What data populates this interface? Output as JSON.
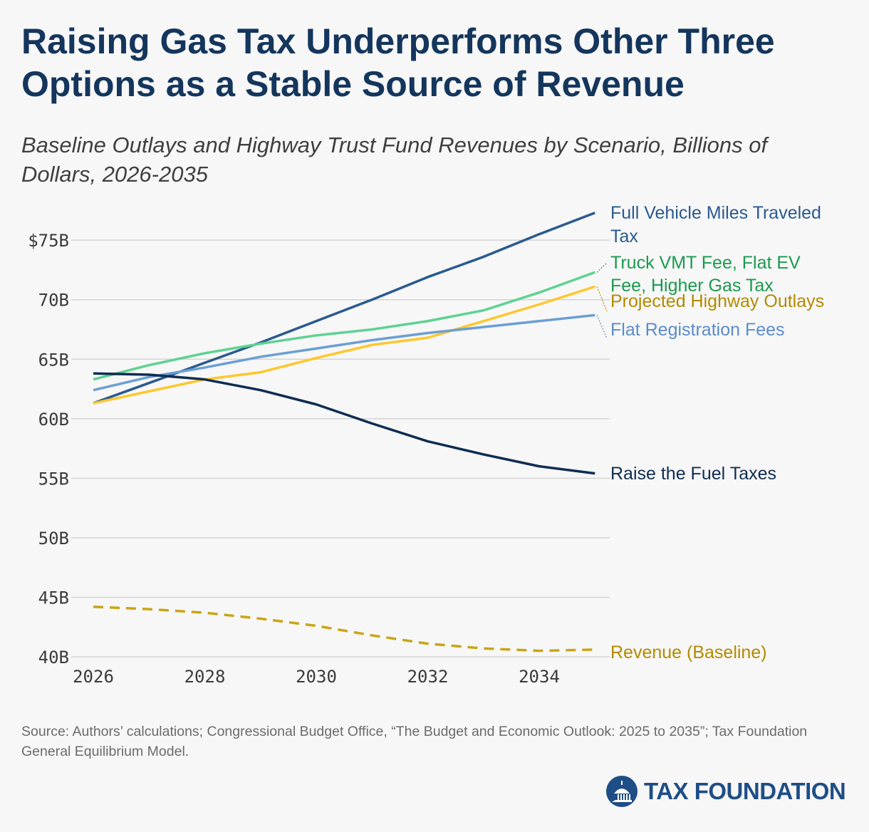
{
  "title": "Raising Gas Tax Underperforms Other Three Options as a Stable Source of Revenue",
  "subtitle": "Baseline Outlays and Highway Trust Fund Revenues by Scenario, Billions of Dollars, 2026-2035",
  "source": "Source: Authors’ calculations; Congressional Budget Office, “The Budget and Economic Outlook: 2025 to 2035”; Tax Foundation General Equilibrium Model.",
  "logo_text": "TAX FOUNDATION",
  "chart_data": {
    "type": "line",
    "x": [
      2026,
      2027,
      2028,
      2029,
      2030,
      2031,
      2032,
      2033,
      2034,
      2035
    ],
    "xticks": [
      "2026",
      "2028",
      "2030",
      "2032",
      "2034"
    ],
    "yticks": [
      "40B",
      "45B",
      "50B",
      "55B",
      "60B",
      "65B",
      "70B",
      "$75B"
    ],
    "ylim": [
      40,
      77.5
    ],
    "grid": "horizontal",
    "legend": "direct labels at right",
    "series": [
      {
        "name": "Full Vehicle Miles Traveled Tax",
        "label_lines": [
          "Full Vehicle Miles Traveled",
          "Tax"
        ],
        "color": "#2a5a8f",
        "label_color": "#2a5a8f",
        "dashed": false,
        "values": [
          61.3,
          63.0,
          64.7,
          66.4,
          68.2,
          70.0,
          71.9,
          73.6,
          75.5,
          77.3
        ]
      },
      {
        "name": "Truck VMT Fee, Flat EV Fee, Higher Gas Tax",
        "label_lines": [
          "Truck VMT Fee, Flat EV",
          "Fee, Higher Gas Tax"
        ],
        "color": "#5ed293",
        "label_color": "#1a9a50",
        "dashed": false,
        "values": [
          63.3,
          64.5,
          65.5,
          66.3,
          67.0,
          67.5,
          68.2,
          69.1,
          70.6,
          72.3
        ]
      },
      {
        "name": "Projected Highway Outlays",
        "label_lines": [
          "Projected Highway Outlays"
        ],
        "color": "#ffc72c",
        "label_color": "#b38a00",
        "dashed": false,
        "values": [
          61.3,
          62.3,
          63.3,
          63.9,
          65.1,
          66.2,
          66.8,
          68.2,
          69.6,
          71.1
        ]
      },
      {
        "name": "Flat Registration Fees",
        "label_lines": [
          "Flat Registration Fees"
        ],
        "color": "#6b9fd4",
        "label_color": "#5b8ccc",
        "dashed": false,
        "values": [
          62.4,
          63.5,
          64.3,
          65.2,
          65.9,
          66.6,
          67.2,
          67.7,
          68.2,
          68.7
        ]
      },
      {
        "name": "Raise the Fuel Taxes",
        "label_lines": [
          "Raise the Fuel Taxes"
        ],
        "color": "#0f2d52",
        "label_color": "#0f2d52",
        "dashed": false,
        "values": [
          63.8,
          63.7,
          63.3,
          62.4,
          61.2,
          59.6,
          58.1,
          57.0,
          56.0,
          55.4
        ]
      },
      {
        "name": "Revenue (Baseline)",
        "label_lines": [
          "Revenue (Baseline)"
        ],
        "color": "#c9a516",
        "label_color": "#b38a00",
        "dashed": true,
        "values": [
          44.2,
          44.0,
          43.7,
          43.2,
          42.6,
          41.8,
          41.1,
          40.7,
          40.5,
          40.6
        ]
      }
    ]
  }
}
